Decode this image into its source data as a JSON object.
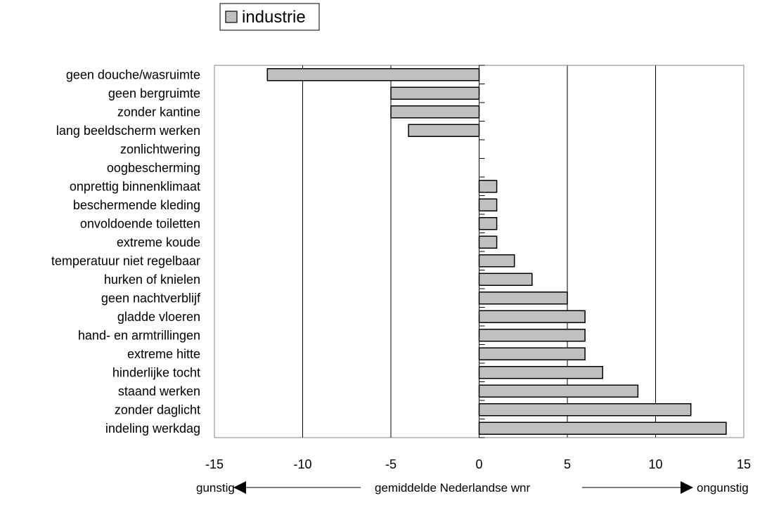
{
  "chart_data": {
    "type": "bar",
    "orientation": "horizontal",
    "categories": [
      "geen douche/wasruimte",
      "geen bergruimte",
      "zonder kantine",
      "lang beeldscherm werken",
      "zonlichtwering",
      "oogbescherming",
      "onprettig binnenklimaat",
      "beschermende kleding",
      "onvoldoende toiletten",
      "extreme koude",
      "temperatuur niet regelbaar",
      "hurken of knielen",
      "geen nachtverblijf",
      "gladde vloeren",
      "hand- en armtrillingen",
      "extreme hitte",
      "hinderlijke tocht",
      "staand werken",
      "zonder daglicht",
      "indeling werkdag"
    ],
    "series": [
      {
        "name": "industrie",
        "values": [
          -12,
          -5,
          -5,
          -4,
          0,
          0,
          1,
          1,
          1,
          1,
          2,
          3,
          5,
          6,
          6,
          6,
          7,
          9,
          12,
          14
        ]
      }
    ],
    "xlim": [
      -15,
      15
    ],
    "xticks": [
      "-15",
      "-10",
      "-5",
      "0",
      "5",
      "10",
      "15"
    ],
    "xlabel": "gemiddelde Nederlandse wnr",
    "xlabel_left": "gunstig",
    "xlabel_right": "ongunstig",
    "legend_position": "top",
    "grid": "vertical",
    "colors": {
      "bar": "#c0c0c0",
      "bar_edge": "#000000",
      "grid": "#000000"
    }
  }
}
